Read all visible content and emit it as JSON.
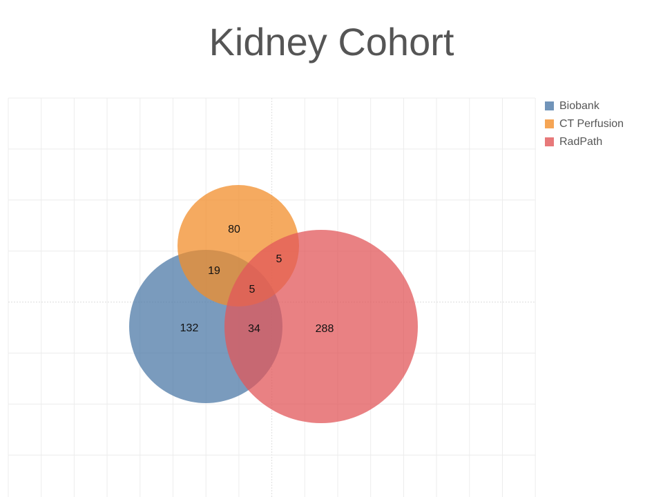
{
  "chart_data": {
    "type": "venn",
    "title": "Kidney Cohort",
    "sets": [
      {
        "name": "Biobank",
        "color": "#4e79a7"
      },
      {
        "name": "CT Perfusion",
        "color": "#f28e2b"
      },
      {
        "name": "RadPath",
        "color": "#e15759"
      }
    ],
    "values": [
      80,
      5,
      19,
      5,
      132,
      34,
      288
    ],
    "grid": true
  }
}
